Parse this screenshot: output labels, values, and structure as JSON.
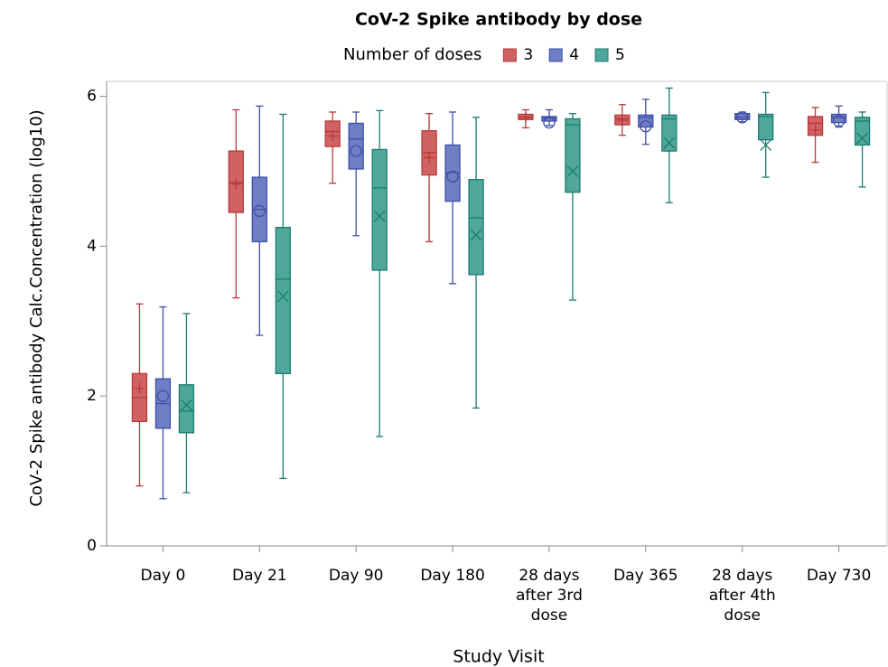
{
  "chart_data": {
    "type": "box",
    "title": "CoV-2 Spike antibody by dose",
    "legend_title": "Number of doses",
    "xlabel": "Study Visit",
    "ylabel": "CoV-2 Spike antibody Calc.Concentration (log10)",
    "categories": [
      "Day 0",
      "Day 21",
      "Day 90",
      "Day 180",
      "28 days after 3rd dose",
      "Day 365",
      "28 days after 4th dose",
      "Day 730"
    ],
    "ylim": [
      0,
      6.2
    ],
    "yticks": [
      0,
      2,
      4,
      6
    ],
    "series": [
      {
        "name": "3",
        "color": "#b8393a",
        "fill": "#d06262",
        "marker": "plus",
        "min": [
          0.8,
          3.31,
          4.84,
          4.06,
          5.58,
          5.48,
          null,
          5.12
        ],
        "q1": [
          1.66,
          4.45,
          5.33,
          4.95,
          5.69,
          5.62,
          null,
          5.48
        ],
        "median": [
          1.98,
          4.85,
          5.53,
          5.25,
          5.72,
          5.7,
          null,
          5.64
        ],
        "q3": [
          2.3,
          5.27,
          5.67,
          5.54,
          5.76,
          5.75,
          null,
          5.73
        ],
        "max": [
          3.23,
          5.82,
          5.79,
          5.77,
          5.82,
          5.89,
          null,
          5.85
        ],
        "mean": [
          2.1,
          4.83,
          5.47,
          5.18,
          5.72,
          5.68,
          null,
          5.55
        ]
      },
      {
        "name": "4",
        "color": "#3f4ea6",
        "fill": "#6f7fc6",
        "marker": "circle",
        "min": [
          0.63,
          2.81,
          4.14,
          3.5,
          5.61,
          5.36,
          5.66,
          5.59
        ],
        "q1": [
          1.57,
          4.06,
          5.03,
          4.6,
          5.67,
          5.59,
          5.69,
          5.65
        ],
        "median": [
          1.9,
          4.49,
          5.43,
          4.98,
          5.71,
          5.72,
          5.72,
          5.72
        ],
        "q3": [
          2.23,
          4.92,
          5.64,
          5.35,
          5.73,
          5.75,
          5.77,
          5.76
        ],
        "max": [
          3.19,
          5.87,
          5.79,
          5.79,
          5.82,
          5.96,
          5.79,
          5.87
        ],
        "mean": [
          2.0,
          4.47,
          5.27,
          4.93,
          5.65,
          5.6,
          5.72,
          5.67
        ]
      },
      {
        "name": "5",
        "color": "#1c7b6e",
        "fill": "#4fa79b",
        "marker": "x",
        "min": [
          0.71,
          0.9,
          1.46,
          1.84,
          3.28,
          4.58,
          4.92,
          4.79
        ],
        "q1": [
          1.51,
          2.3,
          3.68,
          3.62,
          4.72,
          5.27,
          5.42,
          5.35
        ],
        "median": [
          1.8,
          3.56,
          4.78,
          4.38,
          5.62,
          5.7,
          5.73,
          5.67
        ],
        "q3": [
          2.15,
          4.25,
          5.29,
          4.89,
          5.7,
          5.75,
          5.76,
          5.72
        ],
        "max": [
          3.1,
          5.76,
          5.81,
          5.72,
          5.77,
          6.11,
          6.05,
          5.79
        ],
        "mean": [
          1.88,
          3.33,
          4.4,
          4.15,
          5.0,
          5.38,
          5.35,
          5.44
        ]
      }
    ]
  }
}
